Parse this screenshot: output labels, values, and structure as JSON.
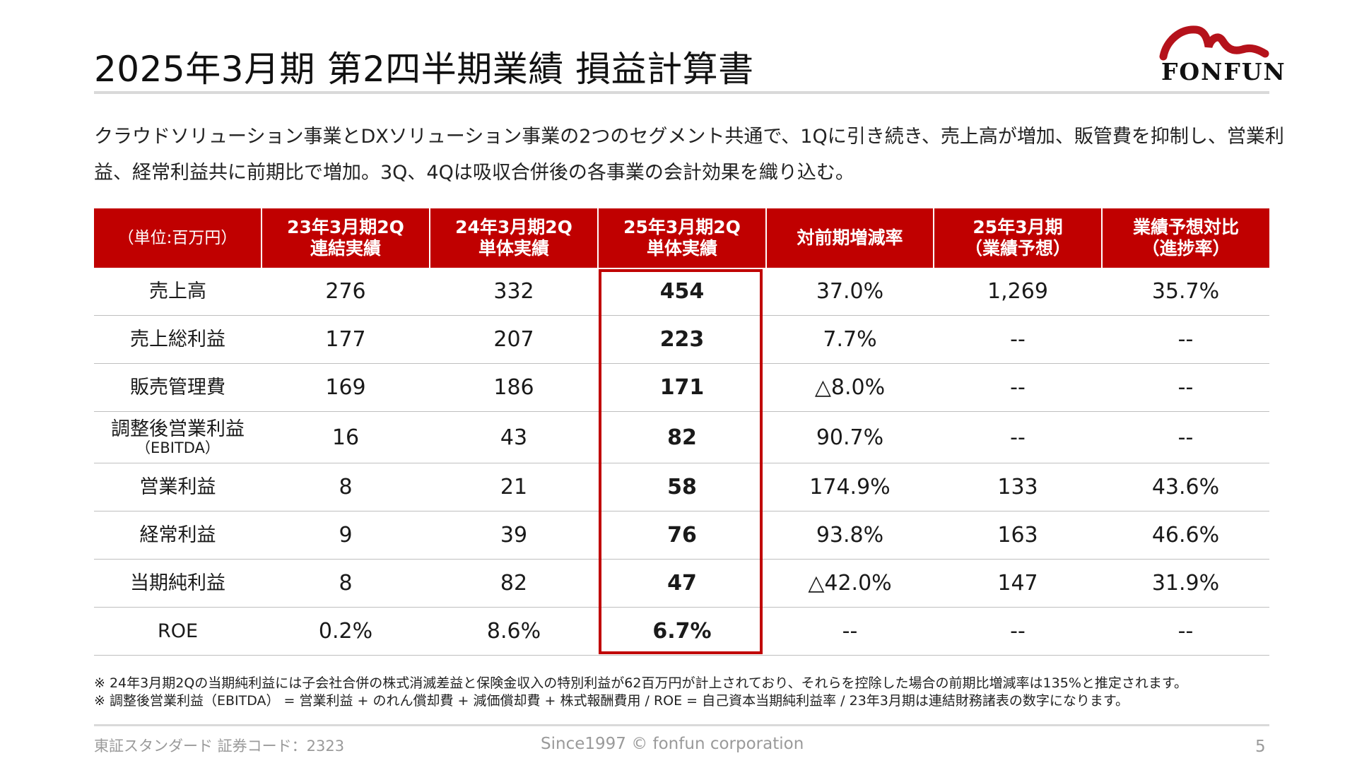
{
  "title": "2025年3月期 第2四半期業績 損益計算書",
  "logo": {
    "text": "FONFUN",
    "accent_color": "#b5121b"
  },
  "lead": [
    "クラウドソリューション事業とDXソリューション事業の2つのセグメント共通で、1Qに引き続き、売上高が増加、販管費を抑制し、営業利",
    "益、経常利益共に前期比で増加。3Q、4Qは吸収合併後の各事業の会計効果を織り込む。"
  ],
  "table": {
    "header_color": "#c00000",
    "headers": [
      [
        "（単位:百万円）"
      ],
      [
        "23年3月期2Q",
        "連結実績"
      ],
      [
        "24年3月期2Q",
        "単体実績"
      ],
      [
        "25年3月期2Q",
        "単体実績"
      ],
      [
        "対前期増減率"
      ],
      [
        "25年3月期",
        "（業績予想）"
      ],
      [
        "業績予想対比",
        "（進捗率）"
      ]
    ],
    "rows": [
      {
        "label": "売上高",
        "sub": "",
        "values": [
          "276",
          "332",
          "454",
          "37.0%",
          "1,269",
          "35.7%"
        ]
      },
      {
        "label": "売上総利益",
        "sub": "",
        "values": [
          "177",
          "207",
          "223",
          "7.7%",
          "--",
          "--"
        ]
      },
      {
        "label": "販売管理費",
        "sub": "",
        "values": [
          "169",
          "186",
          "171",
          "△8.0%",
          "--",
          "--"
        ]
      },
      {
        "label": "調整後営業利益",
        "sub": "（EBITDA）",
        "values": [
          "16",
          "43",
          "82",
          "90.7%",
          "--",
          "--"
        ]
      },
      {
        "label": "営業利益",
        "sub": "",
        "values": [
          "8",
          "21",
          "58",
          "174.9%",
          "133",
          "43.6%"
        ]
      },
      {
        "label": "経常利益",
        "sub": "",
        "values": [
          "9",
          "39",
          "76",
          "93.8%",
          "163",
          "46.6%"
        ]
      },
      {
        "label": "当期純利益",
        "sub": "",
        "values": [
          "8",
          "82",
          "47",
          "△42.0%",
          "147",
          "31.9%"
        ]
      },
      {
        "label": "ROE",
        "sub": "",
        "values": [
          "0.2%",
          "8.6%",
          "6.7%",
          "--",
          "--",
          "--"
        ]
      }
    ]
  },
  "notes": [
    "※ 24年3月期2Qの当期純利益には子会社合併の株式消滅差益と保険金収入の特別利益が62百万円が計上されており、それらを控除した場合の前期比増減率は135%と推定されます。",
    "※ 調整後営業利益（EBITDA） = 営業利益 + のれん償却費 + 減価償却費 + 株式報酬費用 / ROE = 自己資本当期純利益率 / 23年3月期は連結財務諸表の数字になります。"
  ],
  "footer": {
    "left": "東証スタンダード 証券コード：2323",
    "center": "Since1997 © fonfun corporation",
    "page": "5"
  }
}
